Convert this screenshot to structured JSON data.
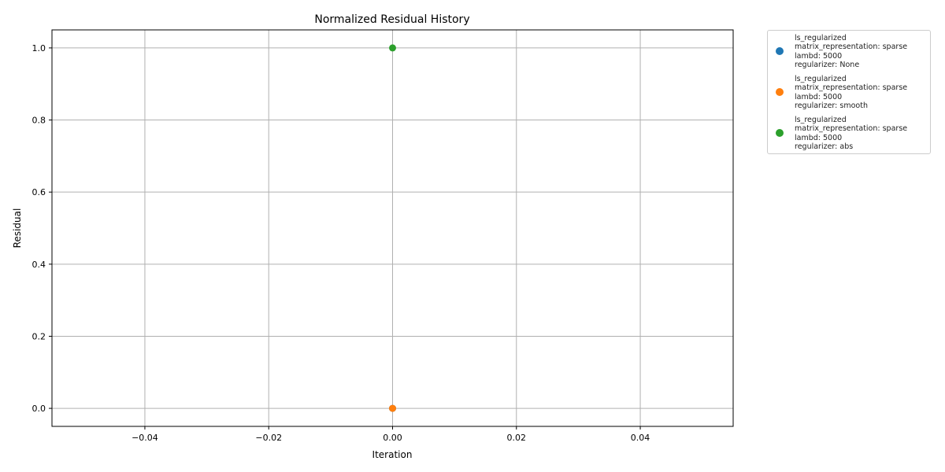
{
  "chart_data": {
    "type": "scatter",
    "title": "Normalized Residual History",
    "xlabel": "Iteration",
    "ylabel": "Residual",
    "xlim": [
      -0.055,
      0.055
    ],
    "ylim": [
      -0.05,
      1.05
    ],
    "xticks": [
      -0.04,
      -0.02,
      0.0,
      0.02,
      0.04
    ],
    "xtick_labels": [
      "−0.04",
      "−0.02",
      "0.00",
      "0.02",
      "0.04"
    ],
    "yticks": [
      0.0,
      0.2,
      0.4,
      0.6,
      0.8,
      1.0
    ],
    "ytick_labels": [
      "0.0",
      "0.2",
      "0.4",
      "0.6",
      "0.8",
      "1.0"
    ],
    "grid": true,
    "legend_position": "outside-top-right",
    "series": [
      {
        "name": "ls_regularized\nmatrix_representation: sparse\nlambd: 5000\nregularizer: None",
        "color": "#1f77b4",
        "points": [
          {
            "x": 0,
            "y": 0.0
          }
        ]
      },
      {
        "name": "ls_regularized\nmatrix_representation: sparse\nlambd: 5000\nregularizer: smooth",
        "color": "#ff7f0e",
        "points": [
          {
            "x": 0,
            "y": 0.0
          }
        ]
      },
      {
        "name": "ls_regularized\nmatrix_representation: sparse\nlambd: 5000\nregularizer: abs",
        "color": "#2ca02c",
        "points": [
          {
            "x": 0,
            "y": 1.0
          }
        ]
      }
    ]
  }
}
